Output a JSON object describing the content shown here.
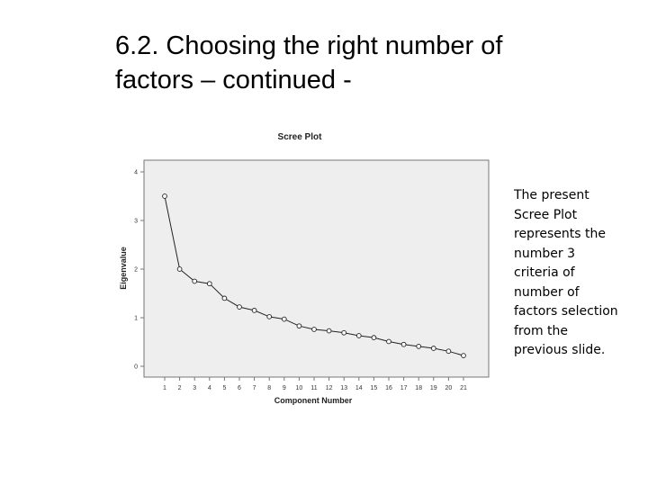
{
  "slide": {
    "title_lines": [
      "6.2. Choosing the right number of",
      "factors – continued -"
    ],
    "note_lines": [
      "The present",
      "Scree Plot",
      "represents the",
      "number 3",
      "criteria of",
      "number of",
      "factors selection",
      "from the",
      "previous slide."
    ]
  },
  "chart_data": {
    "type": "line",
    "title": "Scree Plot",
    "xlabel": "Component Number",
    "ylabel": "Eigenvalue",
    "x": [
      1,
      2,
      3,
      4,
      5,
      6,
      7,
      8,
      9,
      10,
      11,
      12,
      13,
      14,
      15,
      16,
      17,
      18,
      19,
      20,
      21
    ],
    "x_tick_labels": [
      "1",
      "2",
      "3",
      "4",
      "5",
      "6",
      "7",
      "8",
      "9",
      "10",
      "11",
      "12",
      "13",
      "14",
      "15",
      "16",
      "17",
      "18",
      "19",
      "20",
      "21"
    ],
    "values": [
      3.5,
      2.0,
      1.75,
      1.7,
      1.4,
      1.22,
      1.15,
      1.02,
      0.97,
      0.83,
      0.76,
      0.73,
      0.69,
      0.63,
      0.59,
      0.51,
      0.45,
      0.41,
      0.37,
      0.31,
      0.22
    ],
    "y_ticks": [
      0,
      1,
      2,
      3,
      4
    ],
    "y_tick_labels": [
      "0",
      "1",
      "2",
      "3",
      "4"
    ],
    "ylim": [
      0,
      4
    ],
    "grid": false,
    "legend": "none",
    "colors": {
      "plot_background": "#eeeeee",
      "line": "#222222",
      "marker_fill": "#ffffff"
    }
  }
}
